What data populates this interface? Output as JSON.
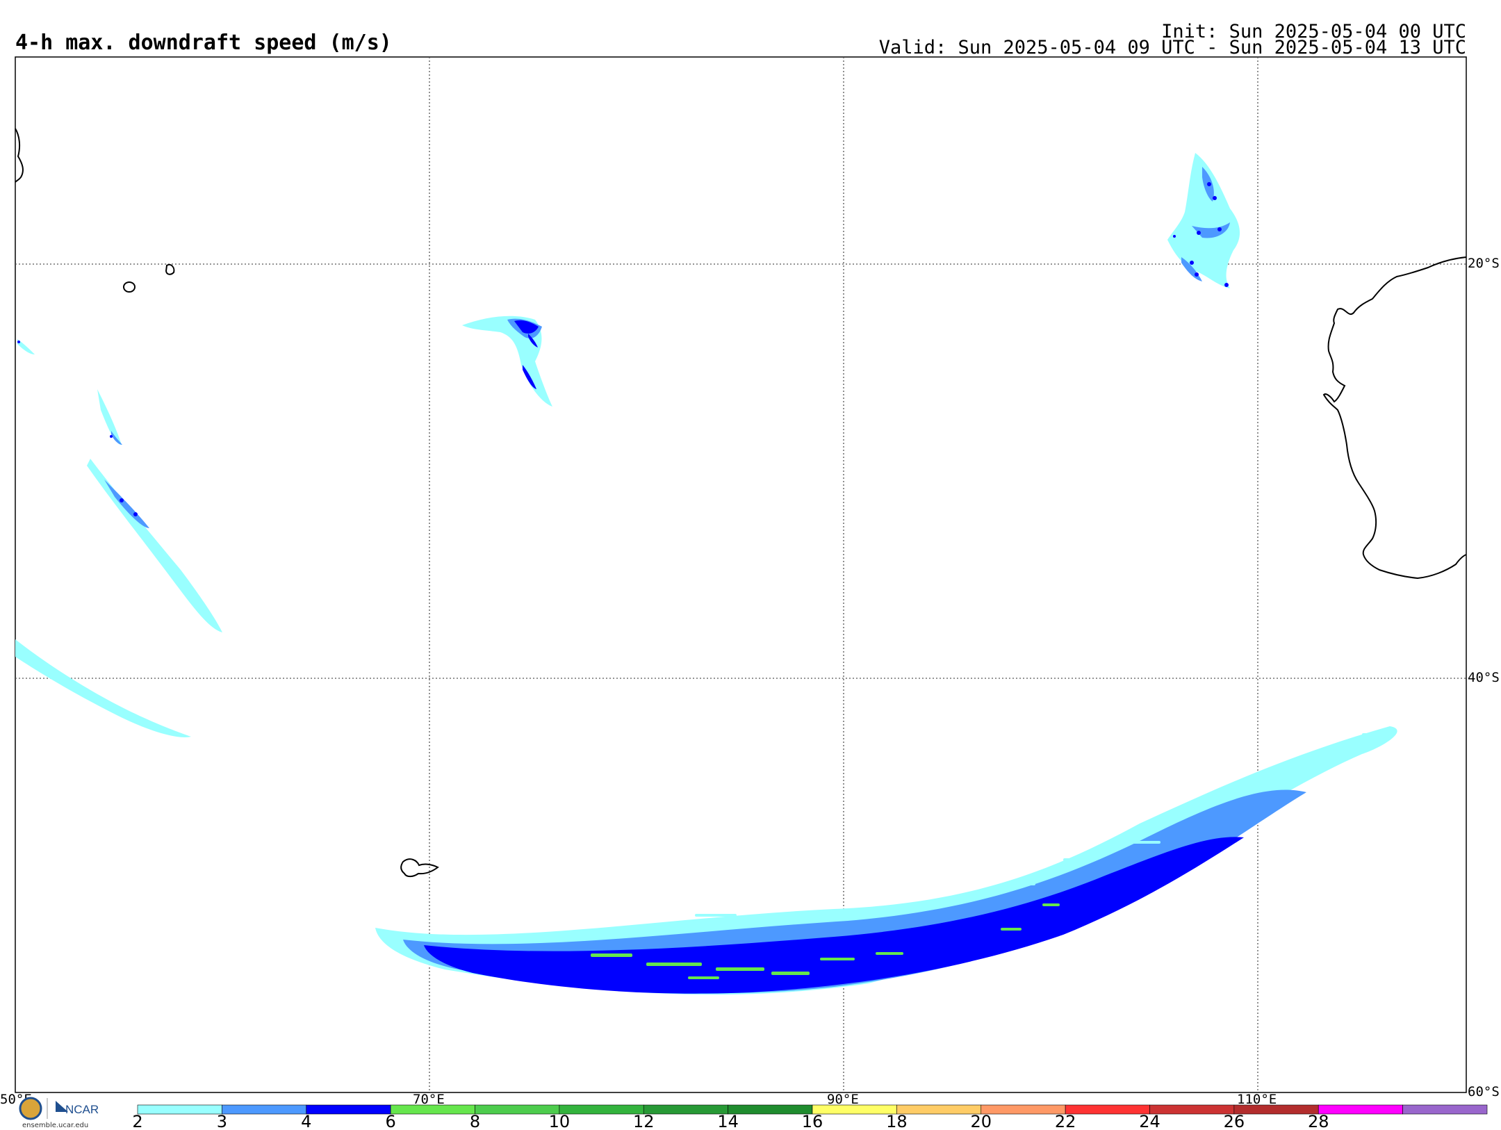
{
  "header": {
    "title": "4-h max. downdraft speed (m/s)",
    "init": "Init: Sun 2025-05-04 00 UTC",
    "valid": "Valid: Sun 2025-05-04 09 UTC - Sun 2025-05-04 13 UTC"
  },
  "map": {
    "lon_range": [
      50,
      120
    ],
    "lat_range": [
      -10,
      -60
    ],
    "lon_labels": [
      "50°E",
      "70°E",
      "90°E",
      "110°E"
    ],
    "lat_labels": [
      "20°S",
      "40°S",
      "60°S"
    ],
    "features": [
      "Madagascar",
      "Mauritius",
      "Réunion",
      "Kerguelen Islands",
      "Western Australia coast"
    ],
    "colors": {
      "coast": "#000000",
      "grid": "#555555"
    }
  },
  "colorbar": {
    "ticks": [
      "2",
      "3",
      "4",
      "6",
      "8",
      "10",
      "12",
      "14",
      "16",
      "18",
      "20",
      "22",
      "24",
      "26",
      "28"
    ],
    "colors": [
      "#99ffff",
      "#4d99ff",
      "#0000ff",
      "#66e64d",
      "#4dcc4d",
      "#33b33d",
      "#279935",
      "#1f8c2e",
      "#ffff66",
      "#ffcc66",
      "#ff9966",
      "#ff3333",
      "#cc3333",
      "#b32d2d",
      "#ff00ff",
      "#9966cc"
    ]
  },
  "logo": {
    "text": "NCAR",
    "url": "ensemble.ucar.edu"
  }
}
